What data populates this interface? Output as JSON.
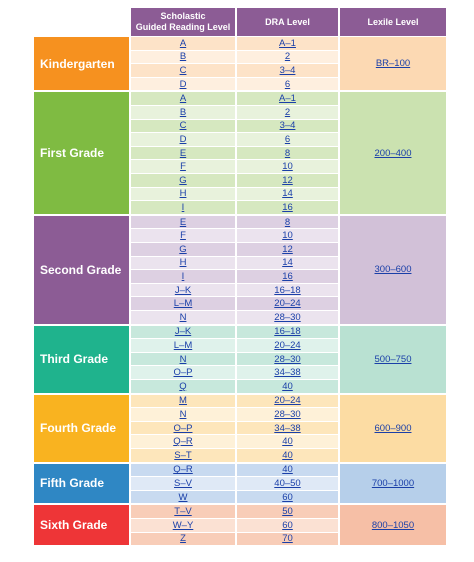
{
  "header": {
    "col1": "Scholastic\nGuided Reading Level",
    "col2": "DRA Level",
    "col3": "Lexile Level"
  },
  "colors": {
    "header": "#8c5c95",
    "kindergarten": "#f6911f",
    "first": "#7fbb42",
    "second": "#8c5c95",
    "third": "#1fb38d",
    "fourth": "#f9b320",
    "fifth": "#2f87c4",
    "sixth": "#ee3537"
  },
  "grades": [
    {
      "name": "Kindergarten",
      "lexile": "BR–100",
      "light": "#fde3c8",
      "lighter": "#feefdf",
      "lexbg": "#fcd9b3",
      "rows": [
        [
          "A",
          "A–1"
        ],
        [
          "B",
          "2"
        ],
        [
          "C",
          "3–4"
        ],
        [
          "D",
          "6"
        ]
      ]
    },
    {
      "name": "First Grade",
      "lexile": "200–400",
      "light": "#d6e8c0",
      "lighter": "#e8f2dc",
      "lexbg": "#cbe2b0",
      "rows": [
        [
          "A",
          "A–1"
        ],
        [
          "B",
          "2"
        ],
        [
          "C",
          "3–4"
        ],
        [
          "D",
          "6"
        ],
        [
          "E",
          "8"
        ],
        [
          "F",
          "10"
        ],
        [
          "G",
          "12"
        ],
        [
          "H",
          "14"
        ],
        [
          "I",
          "16"
        ]
      ]
    },
    {
      "name": "Second Grade",
      "lexile": "300–600",
      "light": "#ddd0e2",
      "lighter": "#ebe3ee",
      "lexbg": "#d2c1d8",
      "rows": [
        [
          "E",
          "8"
        ],
        [
          "F",
          "10"
        ],
        [
          "G",
          "12"
        ],
        [
          "H",
          "14"
        ],
        [
          "I",
          "16"
        ],
        [
          "J–K",
          "16–18"
        ],
        [
          "L–M",
          "20–24"
        ],
        [
          "N",
          "28–30"
        ]
      ]
    },
    {
      "name": "Third Grade",
      "lexile": "500–750",
      "light": "#c7e8dc",
      "lighter": "#dff2eb",
      "lexbg": "#b9e1d2",
      "rows": [
        [
          "J–K",
          "16–18"
        ],
        [
          "L–M",
          "20–24"
        ],
        [
          "N",
          "28–30"
        ],
        [
          "O–P",
          "34–38"
        ],
        [
          "Q",
          "40"
        ]
      ]
    },
    {
      "name": "Fourth Grade",
      "lexile": "600–900",
      "light": "#fde6bb",
      "lighter": "#fef1d8",
      "lexbg": "#fcdca3",
      "rows": [
        [
          "M",
          "20–24"
        ],
        [
          "N",
          "28–30"
        ],
        [
          "O–P",
          "34–38"
        ],
        [
          "Q–R",
          "40"
        ],
        [
          "S–T",
          "40"
        ]
      ]
    },
    {
      "name": "Fifth Grade",
      "lexile": "700–1000",
      "light": "#c8daf0",
      "lighter": "#dfe9f6",
      "lexbg": "#b6cfea",
      "rows": [
        [
          "Q–R",
          "40"
        ],
        [
          "S–V",
          "40–50"
        ],
        [
          "W",
          "60"
        ]
      ]
    },
    {
      "name": "Sixth Grade",
      "lexile": "800–1050",
      "light": "#f8cdb8",
      "lighter": "#fbe1d3",
      "lexbg": "#f6bfa6",
      "rows": [
        [
          "T–V",
          "50"
        ],
        [
          "W–Y",
          "60"
        ],
        [
          "Z",
          "70"
        ]
      ]
    }
  ]
}
